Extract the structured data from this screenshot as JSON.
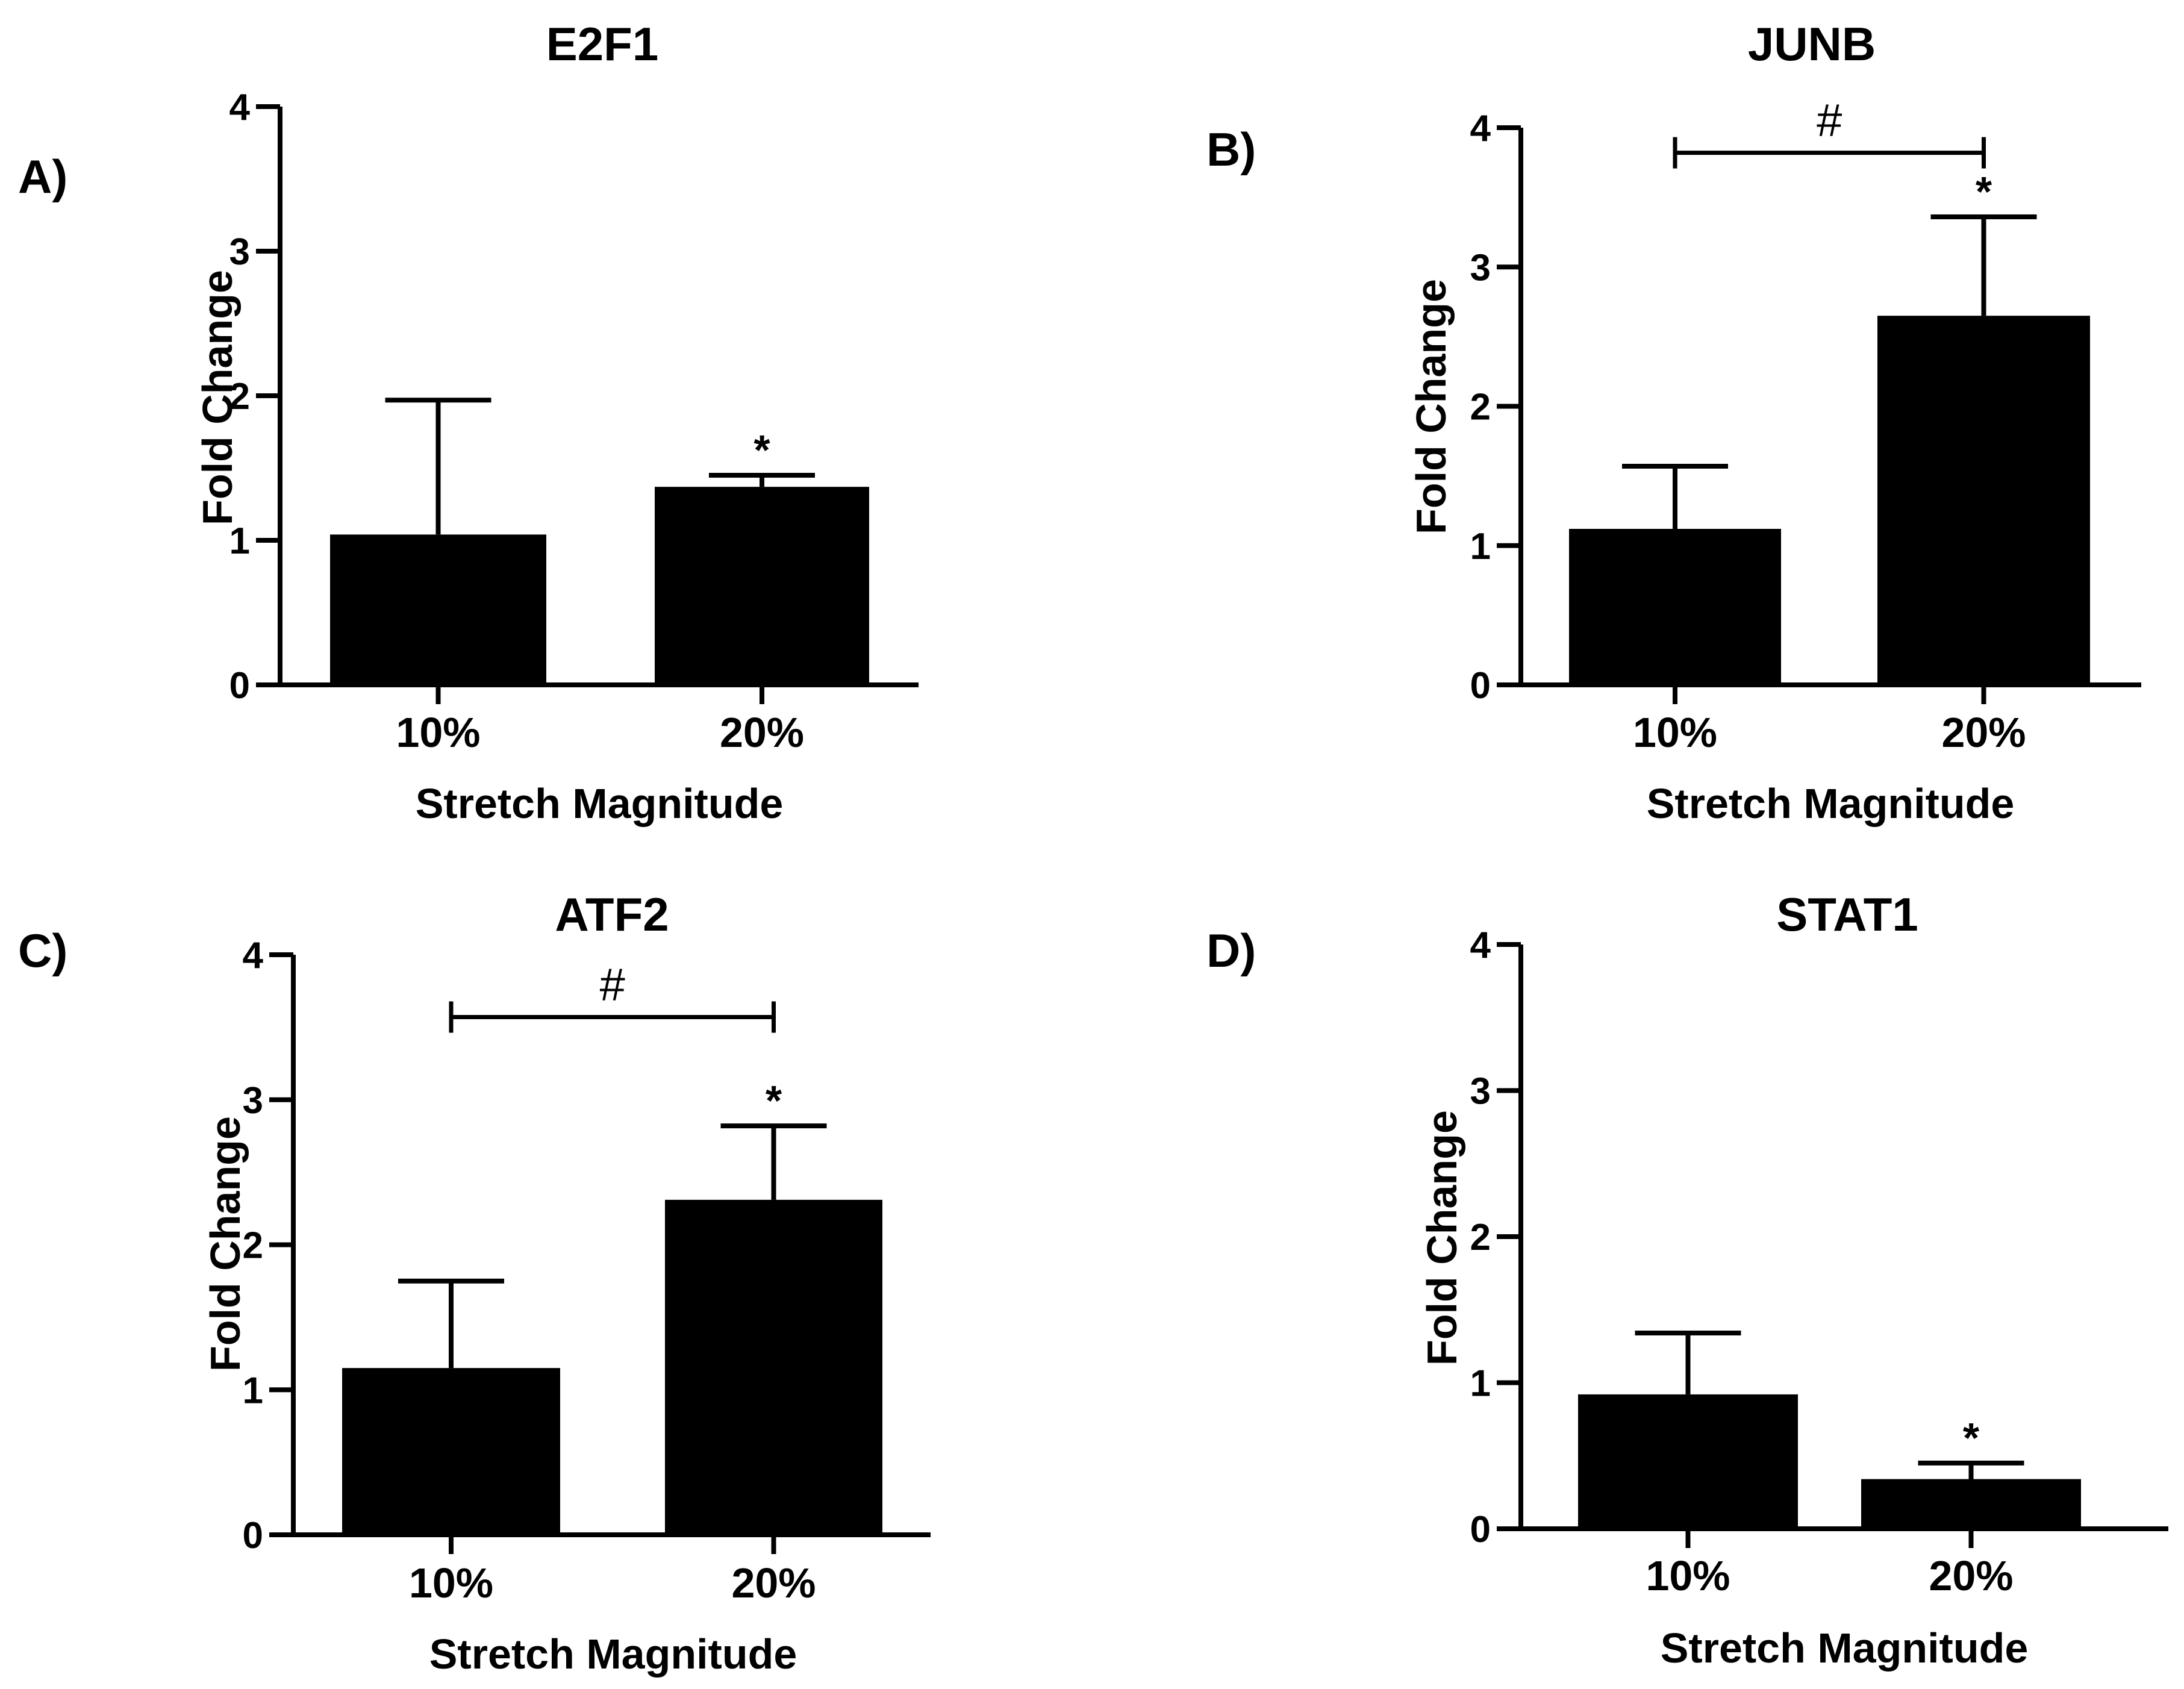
{
  "figure": {
    "xlabel": "Stretch Magnitude",
    "ylabel": "Fold Change"
  },
  "chart_data": [
    {
      "panel": "A)",
      "type": "bar",
      "title": "E2F1",
      "categories": [
        "10%",
        "20%"
      ],
      "values": [
        1.04,
        1.37
      ],
      "error_upper": [
        1.97,
        1.45
      ],
      "significance": [
        "",
        "*"
      ],
      "bracket": null,
      "xlabel": "Stretch Magnitude",
      "ylabel": "Fold Change",
      "ylim": [
        0,
        4
      ],
      "yticks": [
        "0",
        "1",
        "2",
        "3",
        "4"
      ]
    },
    {
      "panel": "B)",
      "type": "bar",
      "title": "JUNB",
      "categories": [
        "10%",
        "20%"
      ],
      "values": [
        1.12,
        2.65
      ],
      "error_upper": [
        1.57,
        3.36
      ],
      "significance": [
        "",
        "*"
      ],
      "bracket": {
        "from": 0,
        "to": 1,
        "symbol": "#",
        "y": 3.82
      },
      "xlabel": "Stretch Magnitude",
      "ylabel": "Fold Change",
      "ylim": [
        0,
        4
      ],
      "yticks": [
        "0",
        "1",
        "2",
        "3",
        "4"
      ]
    },
    {
      "panel": "C)",
      "type": "bar",
      "title": "ATF2",
      "categories": [
        "10%",
        "20%"
      ],
      "values": [
        1.15,
        2.31
      ],
      "error_upper": [
        1.75,
        2.82
      ],
      "significance": [
        "",
        "*"
      ],
      "bracket": {
        "from": 0,
        "to": 1,
        "symbol": "#",
        "y": 3.57
      },
      "xlabel": "Stretch Magnitude",
      "ylabel": "Fold Change",
      "ylim": [
        0,
        4
      ],
      "yticks": [
        "0",
        "1",
        "2",
        "3",
        "4"
      ]
    },
    {
      "panel": "D)",
      "type": "bar",
      "title": "STAT1",
      "categories": [
        "10%",
        "20%"
      ],
      "values": [
        0.92,
        0.34
      ],
      "error_upper": [
        1.34,
        0.45
      ],
      "significance": [
        "",
        "*"
      ],
      "bracket": null,
      "xlabel": "Stretch Magnitude",
      "ylabel": "Fold Change",
      "ylim": [
        0,
        4
      ],
      "yticks": [
        "0",
        "1",
        "2",
        "3",
        "4"
      ]
    }
  ]
}
